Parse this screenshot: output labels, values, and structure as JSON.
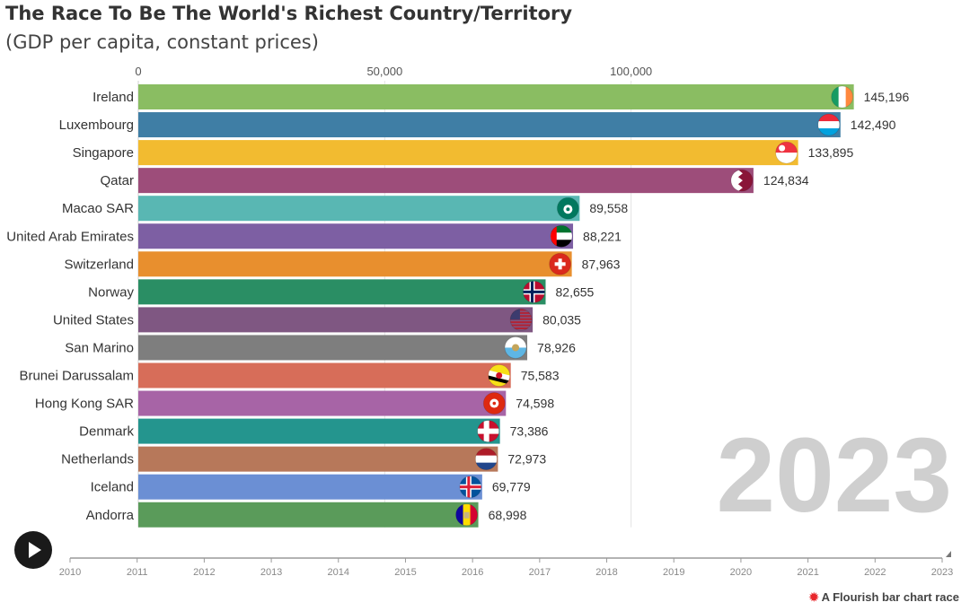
{
  "title": "The Race To Be The World's Richest Country/Territory",
  "subtitle": "(GDP per capita, constant prices)",
  "current_year": "2023",
  "credit": {
    "icon": "flourish-logo-icon",
    "text": "A Flourish bar chart race"
  },
  "controls": {
    "play_icon": "play-icon"
  },
  "timeline": {
    "years": [
      "2010",
      "2011",
      "2012",
      "2013",
      "2014",
      "2015",
      "2016",
      "2017",
      "2018",
      "2019",
      "2020",
      "2021",
      "2022",
      "2023"
    ],
    "current": "2023",
    "progress": 1.0
  },
  "chart_data": {
    "type": "bar",
    "orientation": "horizontal",
    "title": "The Race To Be The World's Richest Country/Territory",
    "subtitle": "(GDP per capita, constant prices)",
    "xlim": [
      0,
      150000
    ],
    "xticks": [
      0,
      50000,
      100000
    ],
    "xtick_labels": [
      "0",
      "50,000",
      "100,000"
    ],
    "grid": true,
    "year": "2023",
    "categories": [
      "Ireland",
      "Luxembourg",
      "Singapore",
      "Qatar",
      "Macao SAR",
      "United Arab Emirates",
      "Switzerland",
      "Norway",
      "United States",
      "San Marino",
      "Brunei Darussalam",
      "Hong Kong SAR",
      "Denmark",
      "Netherlands",
      "Iceland",
      "Andorra"
    ],
    "values": [
      145196,
      142490,
      133895,
      124834,
      89558,
      88221,
      87963,
      82655,
      80035,
      78926,
      75583,
      74598,
      73386,
      72973,
      69779,
      68998
    ],
    "value_labels": [
      "145,196",
      "142,490",
      "133,895",
      "124,834",
      "89,558",
      "88,221",
      "87,963",
      "82,655",
      "80,035",
      "78,926",
      "75,583",
      "74,598",
      "73,386",
      "72,973",
      "69,779",
      "68,998"
    ],
    "colors": [
      "#8abd62",
      "#3f7ea5",
      "#f2bb30",
      "#9d4d7a",
      "#59b7b3",
      "#7d5fa3",
      "#e88f2e",
      "#2a8e64",
      "#7f5782",
      "#7e7e7e",
      "#d76d59",
      "#a764a6",
      "#24958e",
      "#b7785a",
      "#6b8fd4",
      "#5a9b5a"
    ],
    "flags": [
      "ireland-flag-icon",
      "luxembourg-flag-icon",
      "singapore-flag-icon",
      "qatar-flag-icon",
      "macao-flag-icon",
      "uae-flag-icon",
      "switzerland-flag-icon",
      "norway-flag-icon",
      "usa-flag-icon",
      "san-marino-flag-icon",
      "brunei-flag-icon",
      "hong-kong-flag-icon",
      "denmark-flag-icon",
      "netherlands-flag-icon",
      "iceland-flag-icon",
      "andorra-flag-icon"
    ]
  }
}
